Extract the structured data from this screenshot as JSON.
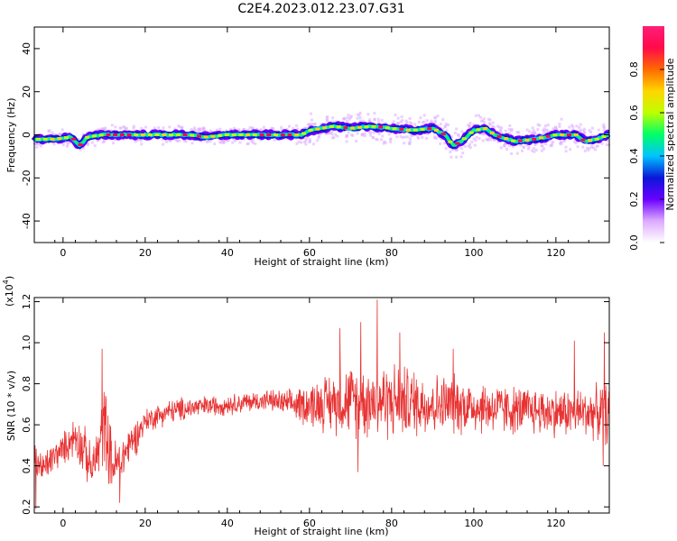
{
  "title": "C2E4.2023.012.23.07.G31",
  "chart_data": [
    {
      "type": "heatmap",
      "xlabel": "Height of straight line (km)",
      "ylabel": "Frequency (Hz)",
      "xlim": [
        -7,
        133
      ],
      "ylim": [
        -50,
        50
      ],
      "xticks": [
        0,
        20,
        40,
        60,
        80,
        100,
        120
      ],
      "yticks": [
        40,
        20,
        0,
        -20,
        -40
      ],
      "ridge": {
        "x": [
          -7,
          -2,
          2,
          4,
          6,
          10,
          15,
          20,
          25,
          30,
          35,
          40,
          45,
          50,
          55,
          58,
          60,
          63,
          66,
          70,
          75,
          80,
          85,
          90,
          93,
          95,
          97,
          100,
          103,
          105,
          110,
          115,
          120,
          125,
          127,
          130,
          133
        ],
        "freq": [
          -2,
          -2,
          -1,
          -5,
          -1,
          0,
          0,
          0,
          0,
          0,
          -1,
          0,
          0,
          0,
          0,
          0,
          2,
          3,
          4,
          3,
          4,
          3,
          2,
          3,
          0,
          -5,
          -3,
          2,
          3,
          0,
          -3,
          -2,
          0,
          0,
          -3,
          -2,
          0
        ]
      },
      "colorbar": {
        "label": "Normalized spectral amplitude",
        "range": [
          0.0,
          1.0
        ],
        "ticks": [
          0.0,
          0.2,
          0.4,
          0.6,
          0.8
        ],
        "colors": [
          "#ffffff",
          "#dcaaff",
          "#6a00ff",
          "#0a17d8",
          "#00c3ff",
          "#00ff66",
          "#bfff00",
          "#ffd500",
          "#ff6a00",
          "#ff0a4a",
          "#ff1e78"
        ]
      }
    },
    {
      "type": "line",
      "xlabel": "Height of straight line (km)",
      "ylabel": "SNR (10 * v/v)",
      "exponent_label": "(x10",
      "exponent_power": "4",
      "exponent_close": ")",
      "xlim": [
        -7,
        133
      ],
      "ylim": [
        0.17,
        1.22
      ],
      "xticks": [
        0,
        20,
        40,
        60,
        80,
        100,
        120
      ],
      "yticks": [
        1.2,
        1.0,
        0.8,
        0.6,
        0.4,
        0.2
      ],
      "line_color": "#e83232",
      "envelope": {
        "x": [
          -7,
          -5,
          -2,
          0,
          3,
          5,
          7,
          9,
          10,
          12,
          14,
          16,
          18,
          20,
          25,
          30,
          35,
          40,
          45,
          50,
          55,
          60,
          65,
          70,
          75,
          80,
          85,
          90,
          95,
          100,
          105,
          110,
          115,
          120,
          125,
          130,
          133
        ],
        "mean": [
          0.45,
          0.38,
          0.45,
          0.48,
          0.55,
          0.48,
          0.38,
          0.5,
          0.62,
          0.4,
          0.42,
          0.5,
          0.55,
          0.62,
          0.66,
          0.68,
          0.69,
          0.7,
          0.71,
          0.72,
          0.7,
          0.7,
          0.71,
          0.72,
          0.72,
          0.72,
          0.71,
          0.7,
          0.7,
          0.69,
          0.68,
          0.67,
          0.67,
          0.66,
          0.66,
          0.66,
          0.65
        ],
        "amp": [
          0.12,
          0.1,
          0.09,
          0.09,
          0.12,
          0.15,
          0.12,
          0.2,
          0.25,
          0.16,
          0.14,
          0.12,
          0.1,
          0.07,
          0.07,
          0.07,
          0.06,
          0.06,
          0.06,
          0.06,
          0.08,
          0.13,
          0.17,
          0.2,
          0.22,
          0.22,
          0.2,
          0.18,
          0.17,
          0.16,
          0.15,
          0.14,
          0.14,
          0.14,
          0.14,
          0.15,
          0.18
        ]
      },
      "peaks": [
        {
          "x": 9.5,
          "y": 0.97
        },
        {
          "x": 13.8,
          "y": 0.22
        },
        {
          "x": -6.6,
          "y": 0.19
        },
        {
          "x": 76.5,
          "y": 1.21
        },
        {
          "x": 72.5,
          "y": 1.1
        },
        {
          "x": 67.4,
          "y": 1.07
        },
        {
          "x": 82,
          "y": 1.05
        },
        {
          "x": 71.8,
          "y": 0.37
        },
        {
          "x": 95,
          "y": 0.97
        },
        {
          "x": 124.5,
          "y": 1.01
        },
        {
          "x": 131.8,
          "y": 1.05
        },
        {
          "x": 131.5,
          "y": 0.4
        }
      ]
    }
  ]
}
